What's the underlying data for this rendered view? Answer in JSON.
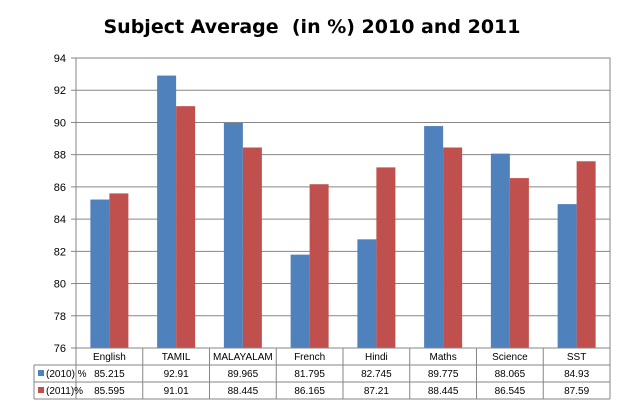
{
  "chart_data": {
    "type": "bar",
    "title": "Subject Average  (in %) 2010 and 2011",
    "categories": [
      "English",
      "TAMIL",
      "MALAYALAM",
      "French",
      "Hindi",
      "Maths",
      "Science",
      "SST"
    ],
    "series": [
      {
        "name": "(2010) %",
        "values": [
          85.215,
          92.91,
          89.965,
          81.795,
          82.745,
          89.775,
          88.065,
          84.93
        ],
        "color": "#4f81bd"
      },
      {
        "name": "(2011)%",
        "values": [
          85.595,
          91.01,
          88.445,
          86.165,
          87.21,
          88.445,
          86.545,
          87.59
        ],
        "color": "#c0504d"
      }
    ],
    "series_labels": [
      "(2010) %",
      "(2011)%"
    ],
    "value_labels": [
      [
        "85.215",
        "92.91",
        "89.965",
        "81.795",
        "82.745",
        "89.775",
        "88.065",
        "84.93"
      ],
      [
        "85.595",
        "91.01",
        "88.445",
        "86.165",
        "87.21",
        "88.445",
        "86.545",
        "87.59"
      ]
    ],
    "y_ticks": [
      "76",
      "78",
      "80",
      "82",
      "84",
      "86",
      "88",
      "90",
      "92",
      "94"
    ],
    "ylim": [
      76,
      94
    ],
    "xlabel": "",
    "ylabel": "",
    "grid": true,
    "legend": "data-table"
  }
}
